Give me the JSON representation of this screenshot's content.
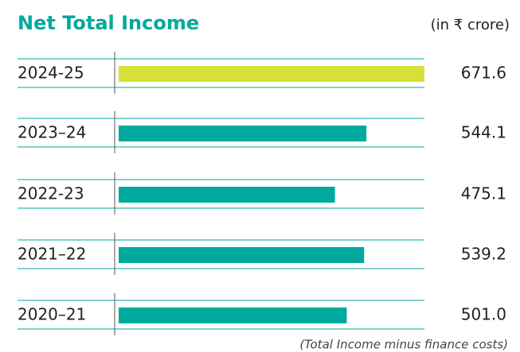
{
  "chart_data": {
    "type": "bar",
    "orientation": "horizontal",
    "title": "Net Total Income",
    "unit_note": "(in ₹ crore)",
    "categories": [
      "2024-25",
      "2023–24",
      "2022-23",
      "2021–22",
      "2020–21"
    ],
    "values": [
      671.6,
      544.1,
      475.1,
      539.2,
      501.0
    ],
    "value_labels": [
      "671.6",
      "544.1",
      "475.1",
      "539.2",
      "501.0"
    ],
    "colors": [
      "#d7df3a",
      "#00a99d",
      "#00a99d",
      "#00a99d",
      "#00a99d"
    ],
    "footnote": "(Total Income minus finance costs)"
  }
}
